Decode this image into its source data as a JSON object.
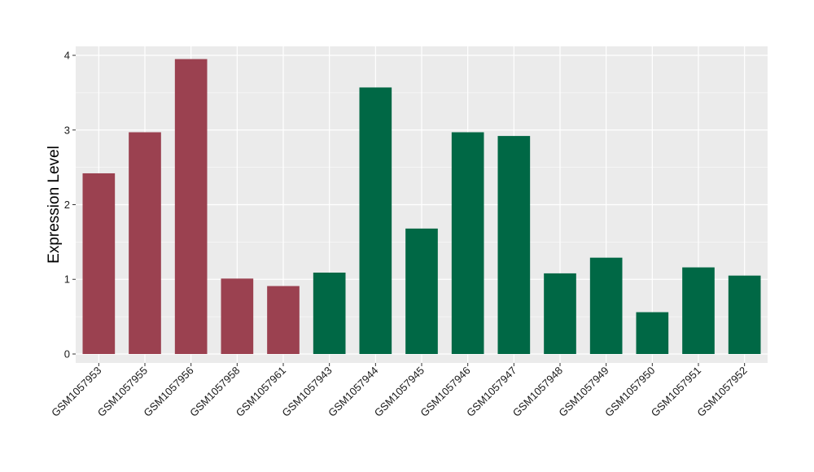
{
  "chart_data": {
    "type": "bar",
    "ylabel": "Expression Level",
    "xlabel": "",
    "ylim": [
      -0.12,
      4.12
    ],
    "yticks": [
      0,
      1,
      2,
      3,
      4
    ],
    "grid": true,
    "background": "#EBEBEB",
    "gridline_color": "#FFFFFF",
    "categories": [
      "GSM1057953",
      "GSM1057955",
      "GSM1057956",
      "GSM1057958",
      "GSM1057961",
      "GSM1057943",
      "GSM1057944",
      "GSM1057945",
      "GSM1057946",
      "GSM1057947",
      "GSM1057948",
      "GSM1057949",
      "GSM1057950",
      "GSM1057951",
      "GSM1057952"
    ],
    "values": [
      2.42,
      2.97,
      3.95,
      1.01,
      0.91,
      1.09,
      3.57,
      1.68,
      2.97,
      2.92,
      1.08,
      1.29,
      0.56,
      1.16,
      1.05
    ],
    "bar_colors": [
      "#9B4150",
      "#9B4150",
      "#9B4150",
      "#9B4150",
      "#9B4150",
      "#006845",
      "#006845",
      "#006845",
      "#006845",
      "#006845",
      "#006845",
      "#006845",
      "#006845",
      "#006845",
      "#006845"
    ]
  }
}
